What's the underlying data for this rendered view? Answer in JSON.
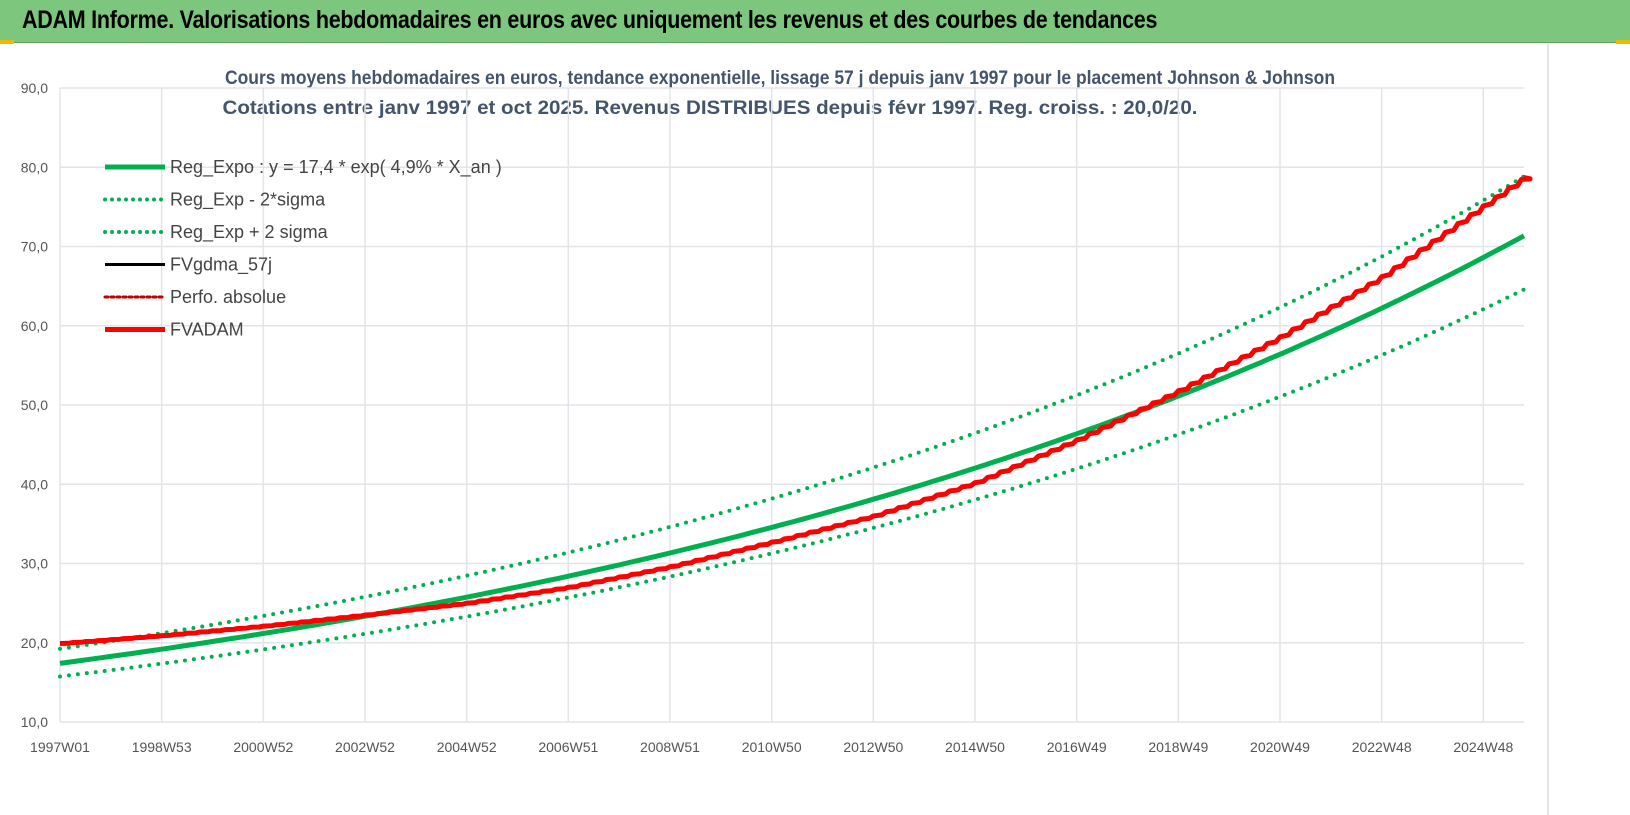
{
  "header": {
    "title": "ADAM Informe. Valorisations hebdomadaires en euros avec uniquement les revenus et des courbes de tendances"
  },
  "chart_data": {
    "type": "line",
    "title": [
      "Cours moyens hebdomadaires en euros, tendance exponentielle, lissage 57 j depuis janv 1997 pour le placement Johnson & Johnson",
      "Cotations entre janv 1997 et oct 2025. Revenus DISTRIBUES depuis févr 1997. Reg. croiss. : 20,0/20."
    ],
    "ylim": [
      10,
      90
    ],
    "yticks": [
      "10,0",
      "20,0",
      "30,0",
      "40,0",
      "50,0",
      "60,0",
      "70,0",
      "80,0",
      "90,0"
    ],
    "xlim": [
      1997.0,
      2025.8
    ],
    "xticks": [
      "1997W01",
      "1998W53",
      "2000W52",
      "2002W52",
      "2004W52",
      "2006W51",
      "2008W51",
      "2010W50",
      "2012W50",
      "2014W50",
      "2016W49",
      "2018W49",
      "2020W49",
      "2022W48",
      "2024W48"
    ],
    "grid": true,
    "legend_position": "top-left",
    "colors": {
      "green": "#00b050",
      "red": "#ff0000",
      "black": "#000000",
      "red_dotted": "#c00000"
    },
    "series": [
      {
        "name": "Reg_Expo : y = 17,4 * exp( 4,9% *  X_an )",
        "style": "green-solid",
        "a": 17.4,
        "r": 0.049,
        "factor": 1.0
      },
      {
        "name": "Reg_Exp - 2*sigma",
        "style": "green-dotted",
        "a": 17.4,
        "r": 0.049,
        "factor": 0.905
      },
      {
        "name": "Reg_Exp + 2 sigma",
        "style": "green-dotted",
        "a": 17.4,
        "r": 0.049,
        "factor": 1.105
      },
      {
        "name": "FVgdma_57j",
        "style": "black-solid"
      },
      {
        "name": "Perfo. absolue",
        "style": "red-dotted"
      },
      {
        "name": "FVADAM",
        "style": "red-thick",
        "x": [
          1997,
          1999,
          2001,
          2003,
          2005,
          2007,
          2009,
          2011,
          2013,
          2015,
          2017,
          2019,
          2021,
          2023,
          2025.8
        ],
        "y": [
          19.9,
          20.9,
          22.1,
          23.5,
          25.0,
          27.0,
          29.6,
          32.7,
          36.0,
          40.2,
          45.6,
          51.8,
          58.6,
          66.2,
          78.7
        ]
      }
    ]
  }
}
